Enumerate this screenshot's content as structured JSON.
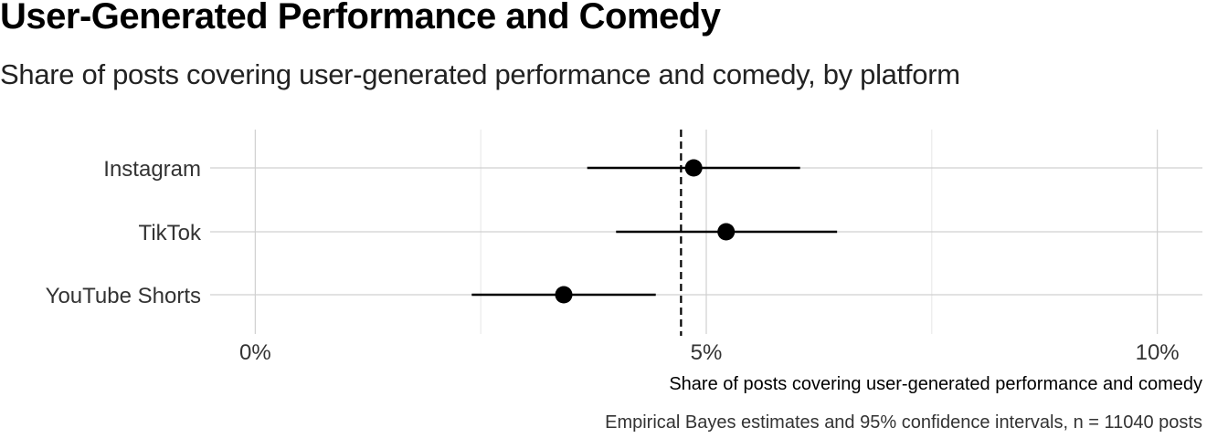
{
  "chart_data": {
    "type": "scatter",
    "title": "User-Generated Performance and Comedy",
    "subtitle": "Share of posts covering user-generated performance and comedy, by platform",
    "xlabel": "Share of posts covering user-generated performance and comedy",
    "ylabel": "",
    "caption": "Empirical Bayes estimates and 95% confidence intervals, n = 11040 posts",
    "xlim": [
      -0.5,
      10.5
    ],
    "x_ticks": [
      0,
      5,
      10
    ],
    "x_tick_labels": [
      "0%",
      "5%",
      "10%"
    ],
    "reference_line": 4.72,
    "grid": true,
    "categories": [
      "Instagram",
      "TikTok",
      "YouTube Shorts"
    ],
    "points": [
      {
        "category": "Instagram",
        "estimate": 4.86,
        "lower": 3.68,
        "upper": 6.04
      },
      {
        "category": "TikTok",
        "estimate": 5.22,
        "lower": 4.0,
        "upper": 6.45
      },
      {
        "category": "YouTube Shorts",
        "estimate": 3.42,
        "lower": 2.4,
        "upper": 4.44
      }
    ]
  }
}
